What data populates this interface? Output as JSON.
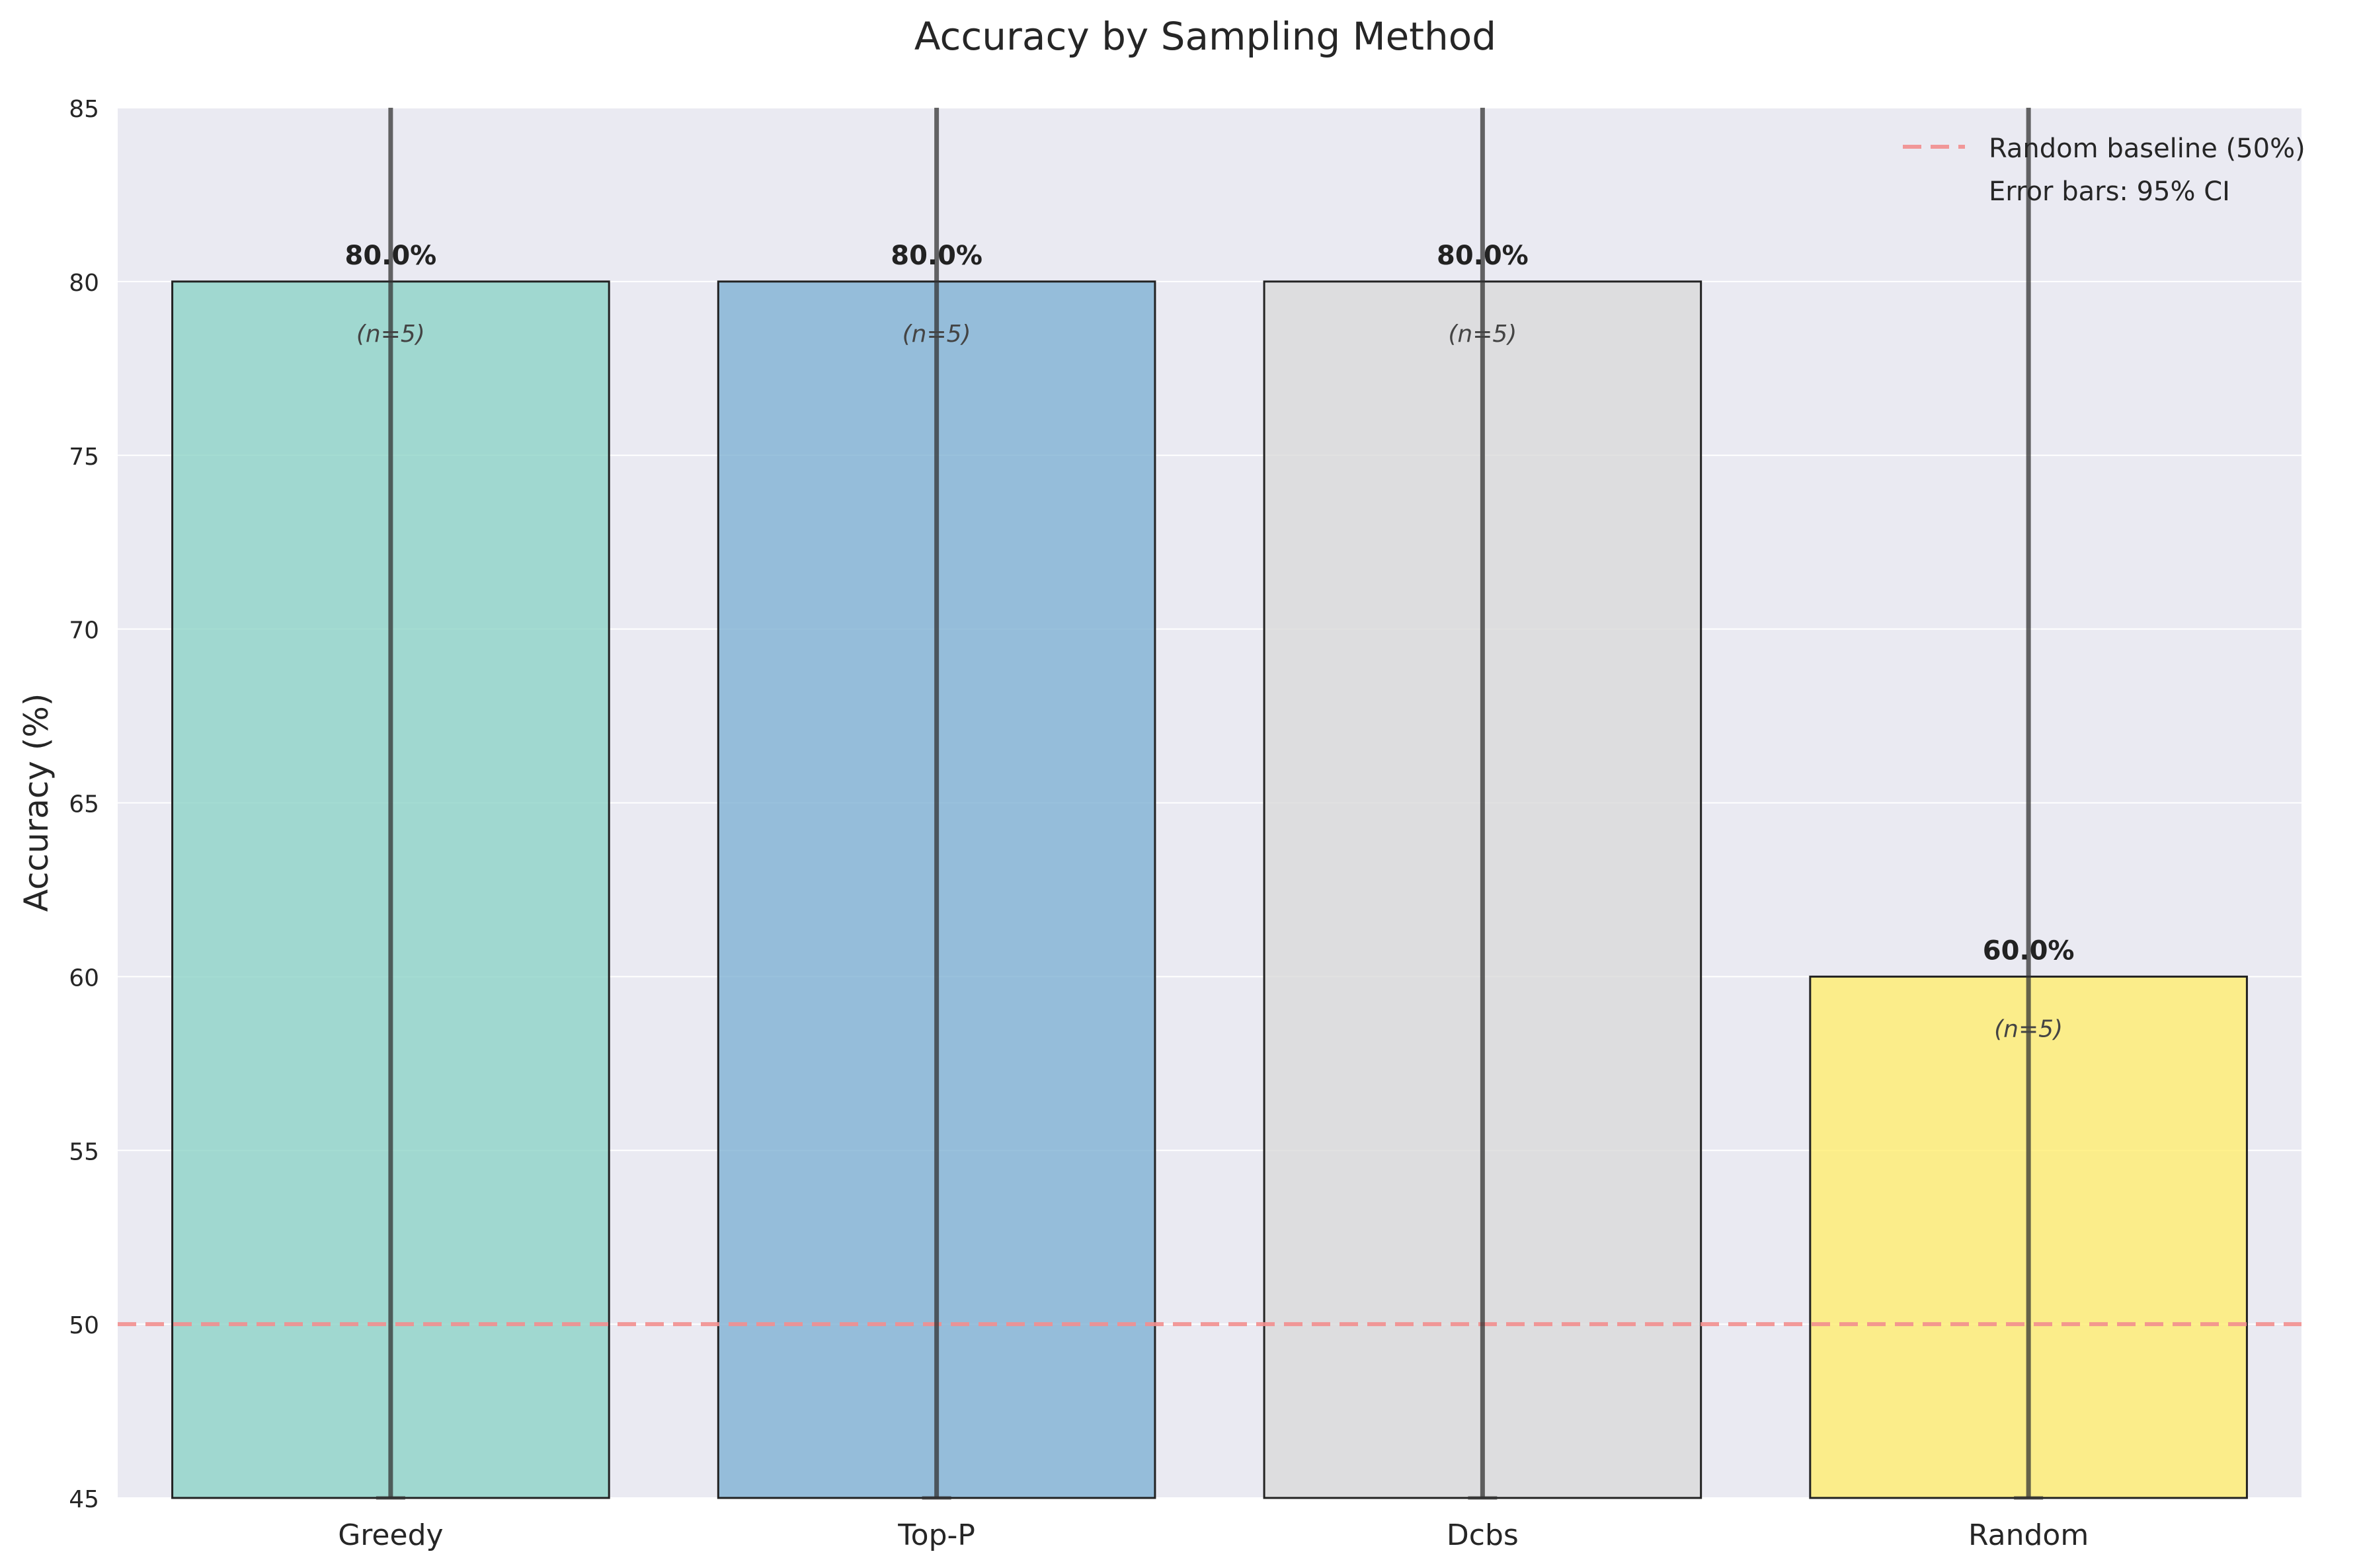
{
  "chart_data": {
    "type": "bar",
    "title": "Accuracy by Sampling Method",
    "xlabel": "",
    "ylabel": "Accuracy (%)",
    "categories": [
      "Greedy",
      "Top-P",
      "Dcbs",
      "Random"
    ],
    "values": [
      80.0,
      80.0,
      80.0,
      60.0
    ],
    "value_labels": [
      "80.0%",
      "80.0%",
      "80.0%",
      "60.0%"
    ],
    "sample_labels": [
      "(n=5)",
      "(n=5)",
      "(n=5)",
      "(n=5)"
    ],
    "error_bars": [
      {
        "low": 45,
        "high": 85
      },
      {
        "low": 45,
        "high": 85
      },
      {
        "low": 45,
        "high": 85
      },
      {
        "low": 45,
        "high": 85
      }
    ],
    "bar_colors": [
      "#8dd3c7",
      "#80b1d3",
      "#d9d9d9",
      "#ffed6f"
    ],
    "ylim": [
      45,
      85
    ],
    "yticks": [
      45,
      50,
      55,
      60,
      65,
      70,
      75,
      80,
      85
    ],
    "baseline": {
      "value": 50,
      "label": "Random baseline (50%)",
      "color": "#f28e8e"
    },
    "legend": {
      "position": "top-right",
      "note": "Error bars: 95% CI"
    },
    "grid": true
  }
}
